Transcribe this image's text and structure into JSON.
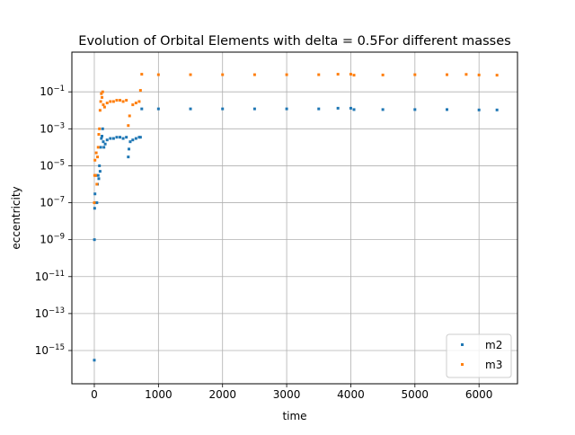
{
  "chart_data": {
    "type": "scatter",
    "title": "Evolution of Orbital Elements with delta = 0.5For different masses",
    "xlabel": "time",
    "ylabel": "eccentricity",
    "xlim": [
      -350,
      6600
    ],
    "ylim_log10": [
      -16.8,
      1.15
    ],
    "y_scale": "log",
    "grid": true,
    "legend_position": "lower right",
    "x_ticks": [
      {
        "value": 0,
        "label": "0"
      },
      {
        "value": 1000,
        "label": "1000"
      },
      {
        "value": 2000,
        "label": "2000"
      },
      {
        "value": 3000,
        "label": "3000"
      },
      {
        "value": 4000,
        "label": "4000"
      },
      {
        "value": 5000,
        "label": "5000"
      },
      {
        "value": 6000,
        "label": "6000"
      }
    ],
    "y_ticks": [
      {
        "exp": -15,
        "base": "10",
        "power": "−15"
      },
      {
        "exp": -13,
        "base": "10",
        "power": "−13"
      },
      {
        "exp": -11,
        "base": "10",
        "power": "−11"
      },
      {
        "exp": -9,
        "base": "10",
        "power": "−9"
      },
      {
        "exp": -7,
        "base": "10",
        "power": "−7"
      },
      {
        "exp": -5,
        "base": "10",
        "power": "−5"
      },
      {
        "exp": -3,
        "base": "10",
        "power": "−3"
      },
      {
        "exp": -1,
        "base": "10",
        "power": "−1"
      }
    ],
    "series": [
      {
        "name": "m2",
        "color": "#1f77b4",
        "points": [
          [
            0,
            3e-16
          ],
          [
            2,
            1e-09
          ],
          [
            5,
            5e-08
          ],
          [
            10,
            3e-07
          ],
          [
            20,
            1e-07
          ],
          [
            30,
            3e-06
          ],
          [
            40,
            1e-07
          ],
          [
            50,
            1e-06
          ],
          [
            60,
            3e-06
          ],
          [
            70,
            2e-06
          ],
          [
            80,
            1e-05
          ],
          [
            90,
            5e-06
          ],
          [
            100,
            0.0001
          ],
          [
            110,
            0.0003
          ],
          [
            120,
            0.0004
          ],
          [
            130,
            0.001
          ],
          [
            140,
            0.0002
          ],
          [
            150,
            0.0001
          ],
          [
            170,
            0.00015
          ],
          [
            200,
            0.00025
          ],
          [
            250,
            0.0003
          ],
          [
            300,
            0.0003
          ],
          [
            350,
            0.00035
          ],
          [
            400,
            0.00035
          ],
          [
            450,
            0.0003
          ],
          [
            500,
            0.00035
          ],
          [
            530,
            3e-05
          ],
          [
            540,
            8e-05
          ],
          [
            560,
            0.0002
          ],
          [
            600,
            0.00025
          ],
          [
            650,
            0.0003
          ],
          [
            700,
            0.00035
          ],
          [
            720,
            0.00035
          ],
          [
            740,
            0.012
          ],
          [
            1000,
            0.012
          ],
          [
            1500,
            0.012
          ],
          [
            2000,
            0.012
          ],
          [
            2500,
            0.012
          ],
          [
            3000,
            0.012
          ],
          [
            3500,
            0.012
          ],
          [
            3800,
            0.013
          ],
          [
            4000,
            0.013
          ],
          [
            4050,
            0.011
          ],
          [
            4500,
            0.011
          ],
          [
            5000,
            0.011
          ],
          [
            5500,
            0.011
          ],
          [
            6000,
            0.0105
          ],
          [
            6280,
            0.0105
          ]
        ]
      },
      {
        "name": "m3",
        "color": "#ff7f0e",
        "points": [
          [
            0,
            1e-07
          ],
          [
            5,
            3e-06
          ],
          [
            10,
            2e-05
          ],
          [
            20,
            3e-06
          ],
          [
            30,
            5e-05
          ],
          [
            40,
            1e-06
          ],
          [
            50,
            3e-05
          ],
          [
            60,
            0.0001
          ],
          [
            70,
            0.0005
          ],
          [
            80,
            0.001
          ],
          [
            90,
            0.01
          ],
          [
            100,
            0.03
          ],
          [
            110,
            0.08
          ],
          [
            120,
            0.05
          ],
          [
            130,
            0.1
          ],
          [
            140,
            0.02
          ],
          [
            160,
            0.015
          ],
          [
            200,
            0.025
          ],
          [
            250,
            0.03
          ],
          [
            300,
            0.03
          ],
          [
            350,
            0.035
          ],
          [
            400,
            0.035
          ],
          [
            450,
            0.03
          ],
          [
            500,
            0.035
          ],
          [
            530,
            0.0015
          ],
          [
            550,
            0.005
          ],
          [
            600,
            0.02
          ],
          [
            650,
            0.025
          ],
          [
            700,
            0.03
          ],
          [
            720,
            0.12
          ],
          [
            740,
            0.9
          ],
          [
            1000,
            0.85
          ],
          [
            1500,
            0.85
          ],
          [
            2000,
            0.85
          ],
          [
            2500,
            0.85
          ],
          [
            3000,
            0.85
          ],
          [
            3500,
            0.85
          ],
          [
            3800,
            0.9
          ],
          [
            4000,
            0.9
          ],
          [
            4050,
            0.8
          ],
          [
            4500,
            0.82
          ],
          [
            5000,
            0.85
          ],
          [
            5500,
            0.85
          ],
          [
            5800,
            0.88
          ],
          [
            6000,
            0.82
          ],
          [
            6280,
            0.8
          ]
        ]
      }
    ]
  }
}
